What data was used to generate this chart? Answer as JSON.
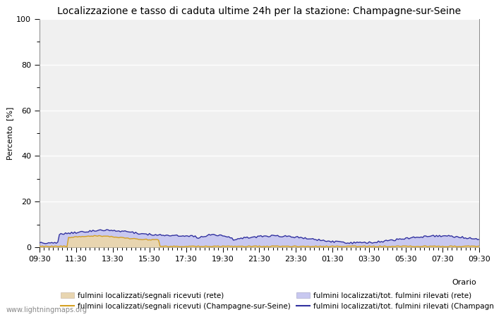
{
  "title": "Localizzazione e tasso di caduta ultime 24h per la stazione: Champagne-sur-Seine",
  "xlabel": "Orario",
  "ylabel": "Percento  [%]",
  "ylim": [
    0,
    100
  ],
  "yticks": [
    0,
    20,
    40,
    60,
    80,
    100
  ],
  "ytick_minor": [
    10,
    30,
    50,
    70,
    90
  ],
  "x_labels": [
    "09:30",
    "11:30",
    "13:30",
    "15:30",
    "17:30",
    "19:30",
    "21:30",
    "23:30",
    "01:30",
    "03:30",
    "05:30",
    "07:30",
    "09:30"
  ],
  "background_color": "#ffffff",
  "plot_bg_color": "#f0f0f0",
  "grid_color": "#ffffff",
  "title_fontsize": 10,
  "axis_label_fontsize": 8,
  "tick_fontsize": 8,
  "watermark": "www.lightningmaps.org",
  "legend_labels": [
    "fulmini localizzati/segnali ricevuti (rete)",
    "fulmini localizzati/segnali ricevuti (Champagne-sur-Seine)",
    "fulmini localizzati/tot. fulmini rilevati (rete)",
    "fulmini localizzati/tot. fulmini rilevati (Champagne-sur-Seine)"
  ],
  "fill_rete_color": "#e8d5b0",
  "fill_rete_alpha": 1.0,
  "fill_css_color": "#c8c8f0",
  "fill_css_alpha": 1.0,
  "line_rete_color": "#d4a020",
  "line_css_color": "#3030a0",
  "line_width": 1.0,
  "num_points": 289
}
